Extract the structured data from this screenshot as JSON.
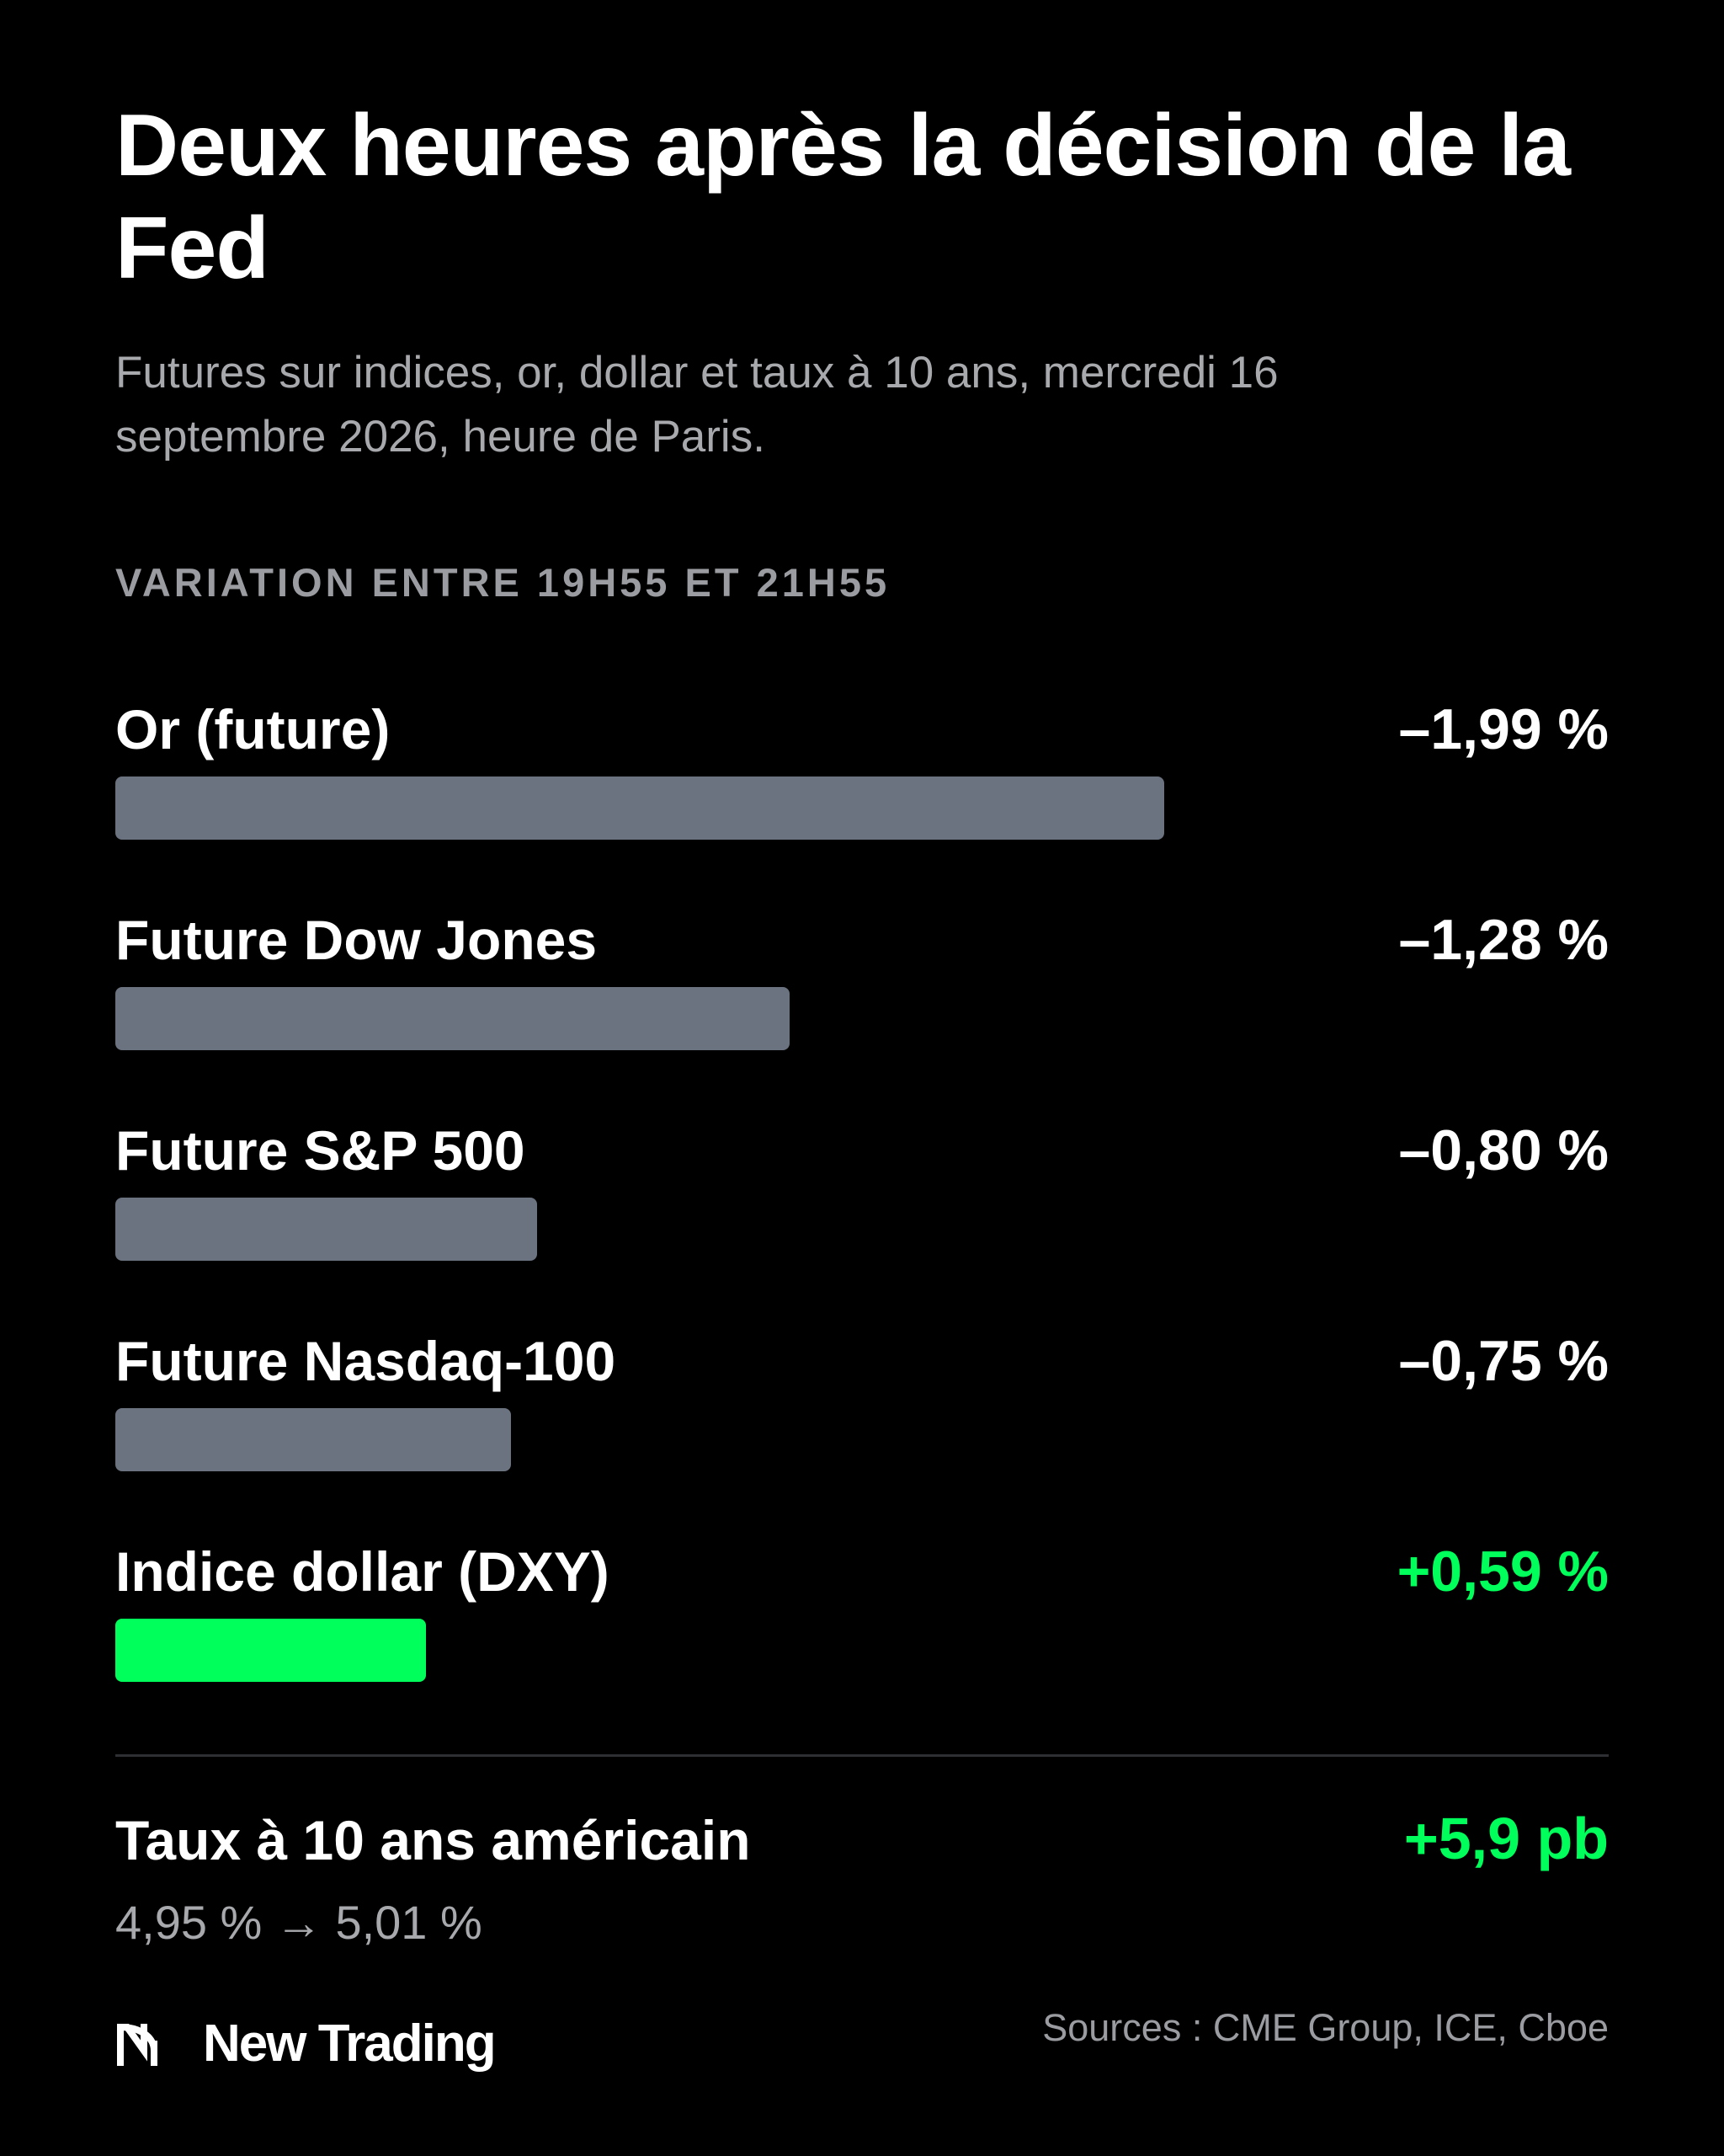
{
  "header": {
    "title": "Deux heures après la décision de la Fed",
    "subtitle": "Futures sur indices, or, dollar et taux à 10 ans, mercredi 16 septembre 2026, heure de Paris."
  },
  "chart_data": {
    "type": "bar",
    "orientation": "horizontal",
    "title": "VARIATION ENTRE 19H55 ET 21H55",
    "unit": "%",
    "categories": [
      "Or (future)",
      "Future Dow Jones",
      "Future S&P 500",
      "Future Nasdaq-100",
      "Indice dollar (DXY)"
    ],
    "values": [
      -1.99,
      -1.28,
      -0.8,
      -0.75,
      0.59
    ],
    "value_labels": [
      "–1,99 %",
      "–1,28 %",
      "–0,80 %",
      "–0,75 %",
      "+0,59 %"
    ],
    "grid": false,
    "colors": {
      "negative_bar": "#6b7280",
      "positive_bar": "#00ff5a",
      "negative_text": "#ffffff",
      "positive_text": "#00ff5a"
    }
  },
  "rate": {
    "label": "Taux à 10 ans américain",
    "value": "+5,9 pb",
    "detail": "4,95 % → 5,01 %",
    "color": "#00ff5a"
  },
  "footer": {
    "brand_name": "New Trading",
    "brand_icon": "new-trading-logo-icon",
    "sources": "Sources : CME Group, ICE, Cboe"
  }
}
